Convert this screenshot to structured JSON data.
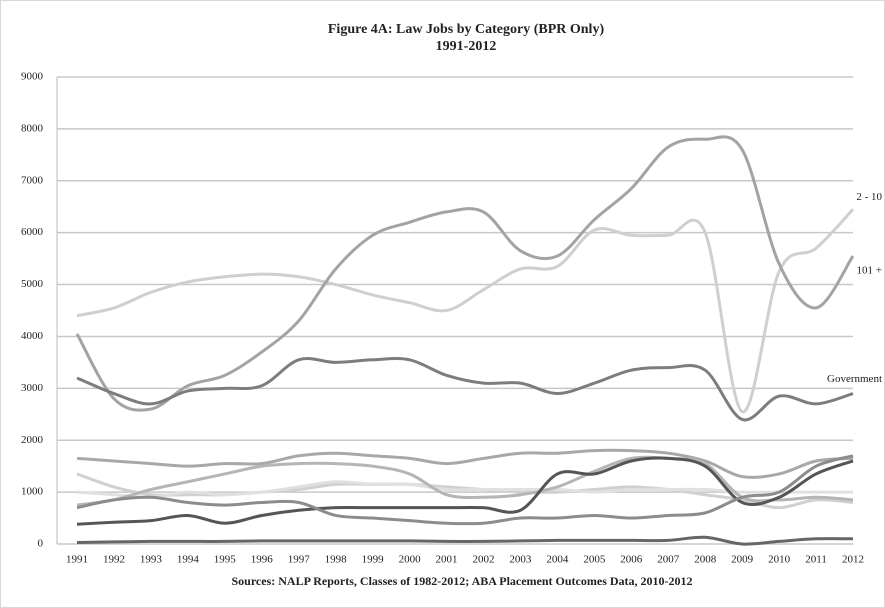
{
  "chart_data": {
    "type": "line",
    "title": "Figure 4A: Law Jobs by Category (BPR Only)",
    "subtitle": "1991-2012",
    "source": "Sources: NALP Reports, Classes of 1982-2012; ABA Placement Outcomes Data, 2010-2012",
    "categories": [
      "1991",
      "1992",
      "1993",
      "1994",
      "1995",
      "1996",
      "1997",
      "1998",
      "1999",
      "2000",
      "2001",
      "2002",
      "2003",
      "2004",
      "2005",
      "2006",
      "2007",
      "2008",
      "2009",
      "2010",
      "2011",
      "2012"
    ],
    "ylim": [
      0,
      9000
    ],
    "yticks": [
      0,
      1000,
      2000,
      3000,
      4000,
      5000,
      6000,
      7000,
      8000,
      9000
    ],
    "grid": true,
    "series": [
      {
        "name": "2 - 10",
        "color": "#cfcfcf",
        "values": [
          4400,
          4550,
          4850,
          5050,
          5150,
          5200,
          5150,
          5000,
          4800,
          4650,
          4500,
          4900,
          5300,
          5350,
          6050,
          5950,
          5950,
          6000,
          2550,
          5250,
          5700,
          6450
        ]
      },
      {
        "name": "101 +",
        "color": "#a3a3a3",
        "values": [
          4050,
          2800,
          2600,
          3050,
          3250,
          3700,
          4300,
          5300,
          5950,
          6200,
          6400,
          6400,
          5650,
          5550,
          6250,
          6850,
          7650,
          7800,
          7600,
          5400,
          4550,
          5550
        ]
      },
      {
        "name": "Government",
        "color": "#7d7d7d",
        "values": [
          3200,
          2900,
          2700,
          2950,
          3000,
          3050,
          3550,
          3500,
          3550,
          3550,
          3250,
          3100,
          3100,
          2900,
          3100,
          3350,
          3400,
          3350,
          2400,
          2850,
          2700,
          2900
        ]
      },
      {
        "color": "#a8a8a8",
        "values": [
          1650,
          1600,
          1550,
          1500,
          1550,
          1550,
          1700,
          1750,
          1700,
          1650,
          1550,
          1650,
          1750,
          1750,
          1800,
          1800,
          1750,
          1600,
          1300,
          1350,
          1600,
          1650
        ]
      },
      {
        "color": "#d0d0d0",
        "values": [
          1350,
          1100,
          950,
          950,
          950,
          1000,
          1050,
          1150,
          1150,
          1150,
          1100,
          1050,
          1000,
          1000,
          1050,
          1100,
          1050,
          950,
          850,
          700,
          850,
          800
        ]
      },
      {
        "color": "#e0e0e0",
        "values": [
          1000,
          950,
          900,
          1000,
          950,
          1000,
          1100,
          1200,
          1150,
          1150,
          1050,
          1050,
          1050,
          1050,
          1000,
          1050,
          1050,
          1050,
          1000,
          1000,
          1000,
          1000
        ]
      },
      {
        "color": "#b5b5b5",
        "values": [
          750,
          850,
          1050,
          1200,
          1350,
          1500,
          1550,
          1550,
          1500,
          1350,
          950,
          900,
          950,
          1100,
          1400,
          1650,
          1650,
          1550,
          900,
          850,
          900,
          850
        ]
      },
      {
        "color": "#555555",
        "values": [
          380,
          420,
          450,
          550,
          400,
          550,
          650,
          700,
          700,
          700,
          700,
          700,
          650,
          1350,
          1350,
          1600,
          1650,
          1500,
          800,
          900,
          1350,
          1600
        ]
      },
      {
        "color": "#8c8c8c",
        "values": [
          700,
          850,
          900,
          800,
          750,
          800,
          800,
          550,
          500,
          450,
          400,
          400,
          500,
          500,
          550,
          500,
          550,
          600,
          900,
          1000,
          1500,
          1700
        ]
      },
      {
        "color": "#666666",
        "values": [
          30,
          40,
          50,
          50,
          50,
          60,
          60,
          60,
          60,
          60,
          50,
          50,
          60,
          70,
          70,
          70,
          70,
          130,
          0,
          50,
          100,
          100
        ]
      }
    ]
  }
}
